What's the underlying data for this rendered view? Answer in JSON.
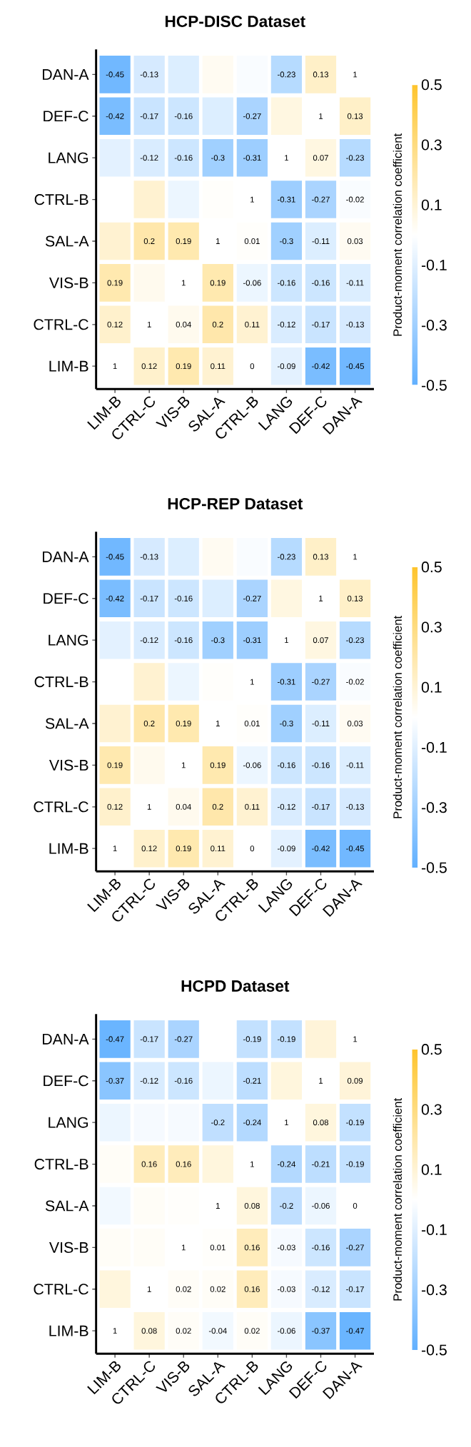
{
  "chart_data": [
    {
      "type": "heatmap",
      "title": "HCP-DISC Dataset",
      "clabel": "Product-moment correlation coefficient",
      "categories": [
        "LIM-B",
        "CTRL-C",
        "VIS-B",
        "SAL-A",
        "CTRL-B",
        "LANG",
        "DEF-C",
        "DAN-A"
      ],
      "y_categories": [
        "DAN-A",
        "DEF-C",
        "LANG",
        "CTRL-B",
        "SAL-A",
        "VIS-B",
        "CTRL-C",
        "LIM-B"
      ],
      "cells": [
        [
          -0.45,
          -0.13,
          -0.11,
          0.03,
          -0.02,
          -0.23,
          0.13,
          null
        ],
        [
          -0.42,
          -0.17,
          -0.16,
          -0.11,
          -0.27,
          0.07,
          null,
          0.13
        ],
        [
          -0.09,
          -0.12,
          -0.16,
          -0.3,
          -0.31,
          null,
          0.07,
          -0.23
        ],
        [
          0,
          0.11,
          -0.06,
          0.01,
          null,
          -0.31,
          -0.27,
          -0.02
        ],
        [
          0.11,
          0.2,
          0.19,
          null,
          0.01,
          -0.3,
          -0.11,
          0.03
        ],
        [
          0.19,
          0.04,
          null,
          0.19,
          -0.06,
          -0.16,
          -0.16,
          -0.11
        ],
        [
          0.12,
          null,
          0.04,
          0.2,
          0.11,
          -0.12,
          -0.17,
          -0.13
        ],
        [
          null,
          0.12,
          0.19,
          0.11,
          0,
          -0.09,
          -0.42,
          -0.45
        ]
      ],
      "cell_labels": [
        [
          "-0.45",
          "-0.13",
          null,
          null,
          null,
          "-0.23",
          "0.13",
          "1"
        ],
        [
          "-0.42",
          "-0.17",
          "-0.16",
          null,
          "-0.27",
          null,
          "1",
          "0.13"
        ],
        [
          null,
          "-0.12",
          "-0.16",
          "-0.3",
          "-0.31",
          "1",
          "0.07",
          "-0.23"
        ],
        [
          null,
          null,
          null,
          null,
          "1",
          "-0.31",
          "-0.27",
          "-0.02"
        ],
        [
          null,
          "0.2",
          "0.19",
          "1",
          "0.01",
          "-0.3",
          "-0.11",
          "0.03"
        ],
        [
          "0.19",
          null,
          "1",
          "0.19",
          "-0.06",
          "-0.16",
          "-0.16",
          "-0.11"
        ],
        [
          "0.12",
          "1",
          "0.04",
          "0.2",
          "0.11",
          "-0.12",
          "-0.17",
          "-0.13"
        ],
        [
          "1",
          "0.12",
          "0.19",
          "0.11",
          "0",
          "-0.09",
          "-0.42",
          "-0.45"
        ]
      ],
      "clim": [
        -0.5,
        0.5
      ],
      "cticks": [
        -0.5,
        -0.3,
        -0.1,
        0.1,
        0.3,
        0.5
      ]
    },
    {
      "type": "heatmap",
      "title": "HCP-REP Dataset",
      "clabel": "Product-moment correlation coefficient",
      "categories": [
        "LIM-B",
        "CTRL-C",
        "VIS-B",
        "SAL-A",
        "CTRL-B",
        "LANG",
        "DEF-C",
        "DAN-A"
      ],
      "y_categories": [
        "DAN-A",
        "DEF-C",
        "LANG",
        "CTRL-B",
        "SAL-A",
        "VIS-B",
        "CTRL-C",
        "LIM-B"
      ],
      "cells": [
        [
          -0.45,
          -0.13,
          -0.11,
          0.03,
          -0.02,
          -0.23,
          0.13,
          null
        ],
        [
          -0.42,
          -0.17,
          -0.16,
          -0.11,
          -0.27,
          0.07,
          null,
          0.13
        ],
        [
          -0.09,
          -0.12,
          -0.16,
          -0.3,
          -0.31,
          null,
          0.07,
          -0.23
        ],
        [
          0,
          0.11,
          -0.06,
          0.01,
          null,
          -0.31,
          -0.27,
          -0.02
        ],
        [
          0.11,
          0.2,
          0.19,
          null,
          0.01,
          -0.3,
          -0.11,
          0.03
        ],
        [
          0.19,
          0.04,
          null,
          0.19,
          -0.06,
          -0.16,
          -0.16,
          -0.11
        ],
        [
          0.12,
          null,
          0.04,
          0.2,
          0.11,
          -0.12,
          -0.17,
          -0.13
        ],
        [
          null,
          0.12,
          0.19,
          0.11,
          0,
          -0.09,
          -0.42,
          -0.45
        ]
      ],
      "cell_labels": [
        [
          "-0.45",
          "-0.13",
          null,
          null,
          null,
          "-0.23",
          "0.13",
          "1"
        ],
        [
          "-0.42",
          "-0.17",
          "-0.16",
          null,
          "-0.27",
          null,
          "1",
          "0.13"
        ],
        [
          null,
          "-0.12",
          "-0.16",
          "-0.3",
          "-0.31",
          "1",
          "0.07",
          "-0.23"
        ],
        [
          null,
          null,
          null,
          null,
          "1",
          "-0.31",
          "-0.27",
          "-0.02"
        ],
        [
          null,
          "0.2",
          "0.19",
          "1",
          "0.01",
          "-0.3",
          "-0.11",
          "0.03"
        ],
        [
          "0.19",
          null,
          "1",
          "0.19",
          "-0.06",
          "-0.16",
          "-0.16",
          "-0.11"
        ],
        [
          "0.12",
          "1",
          "0.04",
          "0.2",
          "0.11",
          "-0.12",
          "-0.17",
          "-0.13"
        ],
        [
          "1",
          "0.12",
          "0.19",
          "0.11",
          "0",
          "-0.09",
          "-0.42",
          "-0.45"
        ]
      ],
      "clim": [
        -0.5,
        0.5
      ],
      "cticks": [
        -0.5,
        -0.3,
        -0.1,
        0.1,
        0.3,
        0.5
      ]
    },
    {
      "type": "heatmap",
      "title": "HCPD Dataset",
      "clabel": "Product-moment correlation coefficient",
      "categories": [
        "LIM-B",
        "CTRL-C",
        "VIS-B",
        "SAL-A",
        "CTRL-B",
        "LANG",
        "DEF-C",
        "DAN-A"
      ],
      "y_categories": [
        "DAN-A",
        "DEF-C",
        "LANG",
        "CTRL-B",
        "SAL-A",
        "VIS-B",
        "CTRL-C",
        "LIM-B"
      ],
      "cells": [
        [
          -0.47,
          -0.17,
          -0.27,
          0,
          -0.19,
          -0.19,
          0.09,
          null
        ],
        [
          -0.37,
          -0.12,
          -0.16,
          -0.06,
          -0.21,
          0.08,
          null,
          0.09
        ],
        [
          -0.06,
          -0.03,
          -0.03,
          -0.2,
          -0.24,
          null,
          0.08,
          -0.19
        ],
        [
          0.02,
          0.16,
          0.16,
          0.08,
          null,
          -0.24,
          -0.21,
          -0.19
        ],
        [
          -0.04,
          0.02,
          0.01,
          null,
          0.08,
          -0.2,
          -0.06,
          0
        ],
        [
          0.02,
          0.02,
          null,
          0.01,
          0.16,
          -0.03,
          -0.16,
          -0.27
        ],
        [
          0.08,
          null,
          0.02,
          0.02,
          0.16,
          -0.03,
          -0.12,
          -0.17
        ],
        [
          null,
          0.08,
          0.02,
          -0.04,
          0.02,
          -0.06,
          -0.37,
          -0.47
        ]
      ],
      "cell_labels": [
        [
          "-0.47",
          "-0.17",
          "-0.27",
          null,
          "-0.19",
          "-0.19",
          null,
          "1"
        ],
        [
          "-0.37",
          "-0.12",
          "-0.16",
          null,
          "-0.21",
          null,
          "1",
          "0.09"
        ],
        [
          null,
          null,
          null,
          "-0.2",
          "-0.24",
          "1",
          "0.08",
          "-0.19"
        ],
        [
          null,
          "0.16",
          "0.16",
          null,
          "1",
          "-0.24",
          "-0.21",
          "-0.19"
        ],
        [
          null,
          null,
          null,
          "1",
          "0.08",
          "-0.2",
          "-0.06",
          "0"
        ],
        [
          null,
          null,
          "1",
          "0.01",
          "0.16",
          "-0.03",
          "-0.16",
          "-0.27"
        ],
        [
          null,
          "1",
          "0.02",
          "0.02",
          "0.16",
          "-0.03",
          "-0.12",
          "-0.17"
        ],
        [
          "1",
          "0.08",
          "0.02",
          "-0.04",
          "0.02",
          "-0.06",
          "-0.37",
          "-0.47"
        ]
      ],
      "clim": [
        -0.5,
        0.5
      ],
      "cticks": [
        -0.5,
        -0.3,
        -0.1,
        0.1,
        0.3,
        0.5
      ]
    }
  ]
}
